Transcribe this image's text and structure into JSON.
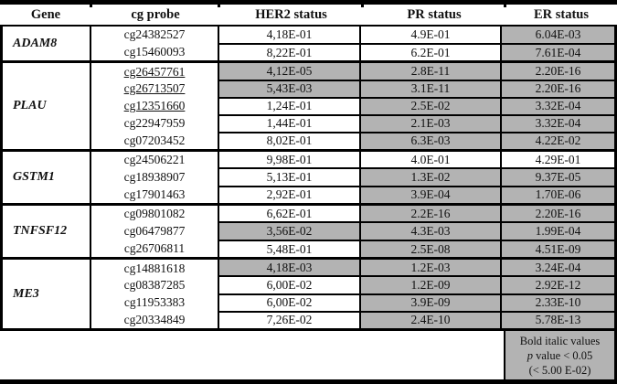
{
  "columns": [
    "Gene",
    "cg probe",
    "HER2 status",
    "PR status",
    "ER status"
  ],
  "note": {
    "line1": "Bold italic values",
    "p_symbol": "p",
    "line2": " value < 0.05",
    "line3": "(< 5.00 E-02)"
  },
  "colors": {
    "significant_fill": "#b3b3b3",
    "border": "#000000",
    "background": "#ffffff"
  },
  "groups": [
    {
      "gene": "ADAM8",
      "rows": [
        {
          "probe": "cg24382527",
          "u": false,
          "her2": {
            "v": "4,18E-01",
            "sig": false
          },
          "pr": {
            "v": "4.9E-01",
            "sig": false
          },
          "er": {
            "v": "6.04E-03",
            "sig": true
          }
        },
        {
          "probe": "cg15460093",
          "u": false,
          "her2": {
            "v": "8,22E-01",
            "sig": false
          },
          "pr": {
            "v": "6.2E-01",
            "sig": false
          },
          "er": {
            "v": "7.61E-04",
            "sig": true
          }
        }
      ]
    },
    {
      "gene": "PLAU",
      "rows": [
        {
          "probe": "cg26457761",
          "u": true,
          "her2": {
            "v": "4,12E-05",
            "sig": true
          },
          "pr": {
            "v": "2.8E-11",
            "sig": true
          },
          "er": {
            "v": "2.20E-16",
            "sig": true
          }
        },
        {
          "probe": "cg26713507",
          "u": true,
          "her2": {
            "v": "5,43E-03",
            "sig": true
          },
          "pr": {
            "v": "3.1E-11",
            "sig": true
          },
          "er": {
            "v": "2.20E-16",
            "sig": true
          }
        },
        {
          "probe": "cg12351660",
          "u": true,
          "her2": {
            "v": "1,24E-01",
            "sig": false
          },
          "pr": {
            "v": "2.5E-02",
            "sig": true
          },
          "er": {
            "v": "3.32E-04",
            "sig": true
          }
        },
        {
          "probe": "cg22947959",
          "u": false,
          "her2": {
            "v": "1,44E-01",
            "sig": false
          },
          "pr": {
            "v": "2.1E-03",
            "sig": true
          },
          "er": {
            "v": "3.32E-04",
            "sig": true
          }
        },
        {
          "probe": "cg07203452",
          "u": false,
          "her2": {
            "v": "8,02E-01",
            "sig": false
          },
          "pr": {
            "v": "6.3E-03",
            "sig": true
          },
          "er": {
            "v": "4.22E-02",
            "sig": true
          }
        }
      ]
    },
    {
      "gene": "GSTM1",
      "rows": [
        {
          "probe": "cg24506221",
          "u": false,
          "her2": {
            "v": "9,98E-01",
            "sig": false
          },
          "pr": {
            "v": "4.0E-01",
            "sig": false
          },
          "er": {
            "v": "4.29E-01",
            "sig": false
          }
        },
        {
          "probe": "cg18938907",
          "u": false,
          "her2": {
            "v": "5,13E-01",
            "sig": false
          },
          "pr": {
            "v": "1.3E-02",
            "sig": true
          },
          "er": {
            "v": "9.37E-05",
            "sig": true
          }
        },
        {
          "probe": "cg17901463",
          "u": false,
          "her2": {
            "v": "2,92E-01",
            "sig": false
          },
          "pr": {
            "v": "3.9E-04",
            "sig": true
          },
          "er": {
            "v": "1.70E-06",
            "sig": true
          }
        }
      ]
    },
    {
      "gene": "TNFSF12",
      "rows": [
        {
          "probe": "cg09801082",
          "u": false,
          "her2": {
            "v": "6,62E-01",
            "sig": false
          },
          "pr": {
            "v": "2.2E-16",
            "sig": true
          },
          "er": {
            "v": "2.20E-16",
            "sig": true
          }
        },
        {
          "probe": "cg06479877",
          "u": false,
          "her2": {
            "v": "3,56E-02",
            "sig": true
          },
          "pr": {
            "v": "4.3E-03",
            "sig": true
          },
          "er": {
            "v": "1.99E-04",
            "sig": true
          }
        },
        {
          "probe": "cg26706811",
          "u": false,
          "her2": {
            "v": "5,48E-01",
            "sig": false
          },
          "pr": {
            "v": "2.5E-08",
            "sig": true
          },
          "er": {
            "v": "4.51E-09",
            "sig": true
          }
        }
      ]
    },
    {
      "gene": "ME3",
      "rows": [
        {
          "probe": "cg14881618",
          "u": false,
          "her2": {
            "v": "4,18E-03",
            "sig": true
          },
          "pr": {
            "v": "1.2E-03",
            "sig": true
          },
          "er": {
            "v": "3.24E-04",
            "sig": true
          }
        },
        {
          "probe": "cg08387285",
          "u": false,
          "her2": {
            "v": "6,00E-02",
            "sig": false
          },
          "pr": {
            "v": "1.2E-09",
            "sig": true
          },
          "er": {
            "v": "2.92E-12",
            "sig": true
          }
        },
        {
          "probe": "cg11953383",
          "u": false,
          "her2": {
            "v": "6,00E-02",
            "sig": false
          },
          "pr": {
            "v": "3.9E-09",
            "sig": true
          },
          "er": {
            "v": "2.33E-10",
            "sig": true
          }
        },
        {
          "probe": "cg20334849",
          "u": false,
          "her2": {
            "v": "7,26E-02",
            "sig": false
          },
          "pr": {
            "v": "2.4E-10",
            "sig": true
          },
          "er": {
            "v": "5.78E-13",
            "sig": true
          }
        }
      ]
    }
  ]
}
